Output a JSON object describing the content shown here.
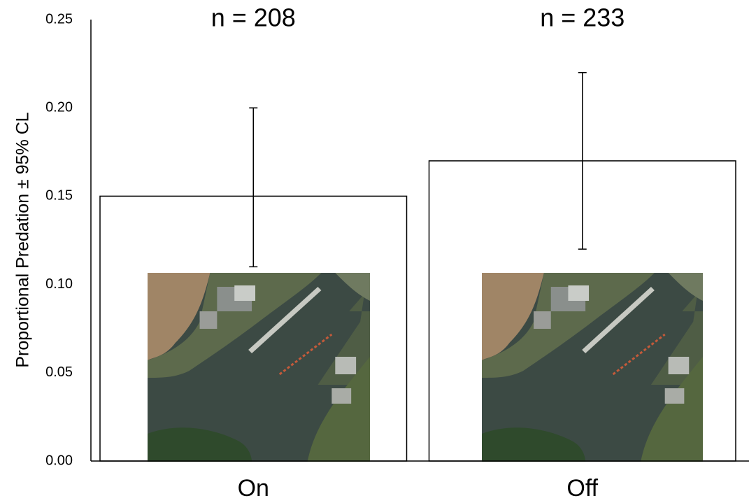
{
  "chart_data": {
    "type": "bar",
    "y_label": "Proportional Predation ± 95% CL",
    "categories": [
      "On",
      "Off"
    ],
    "values": [
      0.15,
      0.17
    ],
    "error_low": [
      0.11,
      0.12
    ],
    "error_high": [
      0.2,
      0.22
    ],
    "annotations": [
      "n = 208",
      "n = 233"
    ],
    "color": "#ffffff",
    "edge_color": "#000000",
    "ylim": [
      0,
      0.25
    ],
    "yticks": [
      {
        "value": 0,
        "label": "0.00"
      },
      {
        "value": 0.05,
        "label": "0.05"
      },
      {
        "value": 0.1,
        "label": "0.10"
      },
      {
        "value": 0.15,
        "label": "0.15"
      },
      {
        "value": 0.2,
        "label": "0.20"
      },
      {
        "value": 0.25,
        "label": "0.25"
      }
    ],
    "grid": false
  }
}
